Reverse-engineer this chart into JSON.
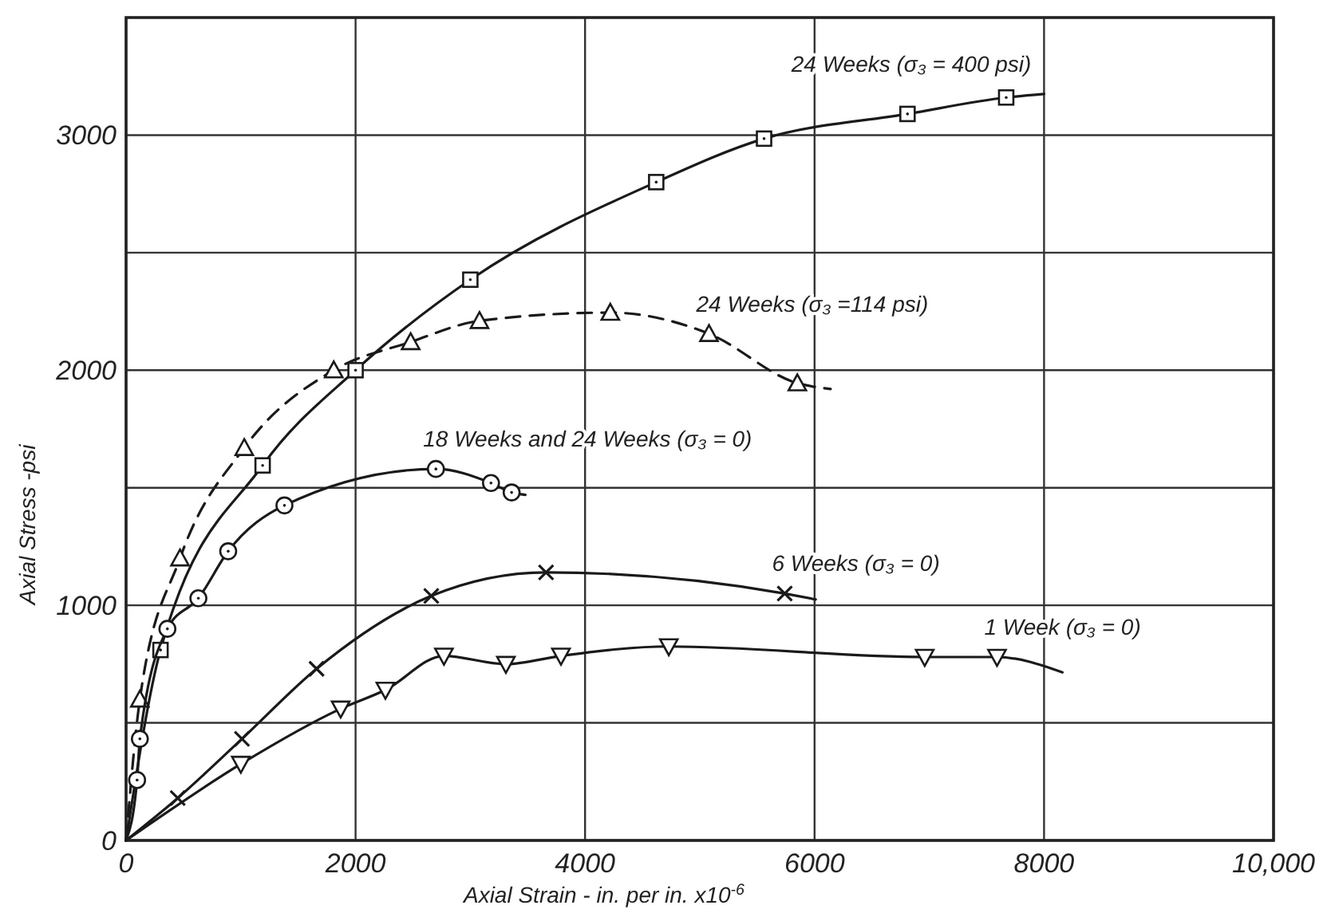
{
  "chart_data": {
    "type": "line",
    "xlabel": "Axial Strain - in. per in. x10$^{-6}$",
    "ylabel": "Axial Stress -psi",
    "xlim": [
      0,
      10000
    ],
    "ylim": [
      0,
      3500
    ],
    "xticks": [
      0,
      2000,
      4000,
      6000,
      8000,
      {
        "value": 10000,
        "label": "10,000"
      }
    ],
    "yticks": [
      0,
      {
        "value": 500,
        "label": null
      },
      1000,
      {
        "value": 1500,
        "label": null
      },
      2000,
      {
        "value": 2500,
        "label": null
      },
      3000
    ],
    "grid": true,
    "series": [
      {
        "type": "line",
        "color": "#1a1a1a",
        "line_style": "solid",
        "marker": "none",
        "x": [
          0,
          300,
          1190,
          2000,
          3000,
          4620,
          5560,
          6810,
          7670,
          8000
        ],
        "values": [
          0,
          810,
          1595,
          2000,
          2385,
          2800,
          2985,
          3090,
          3160,
          3175
        ]
      },
      {
        "type": "scatter",
        "color": "#1a1a1a",
        "marker": "square",
        "x": [
          300,
          1190,
          2000,
          3000,
          4620,
          5560,
          6810,
          7670
        ],
        "values": [
          810,
          1595,
          2000,
          2385,
          2800,
          2985,
          3090,
          3160
        ]
      },
      {
        "type": "line",
        "color": "#1a1a1a",
        "line_style": "dashed",
        "marker": "none",
        "x": [
          0,
          120,
          470,
          1030,
          1810,
          2480,
          3080,
          4220,
          5080,
          5850,
          6140
        ],
        "values": [
          0,
          600,
          1200,
          1670,
          2000,
          2120,
          2210,
          2245,
          2155,
          1945,
          1920
        ]
      },
      {
        "type": "scatter",
        "color": "#1a1a1a",
        "marker": "triangle",
        "x": [
          120,
          470,
          1030,
          1810,
          2480,
          3080,
          4220,
          5080,
          5850
        ],
        "values": [
          600,
          1200,
          1670,
          2000,
          2120,
          2210,
          2245,
          2155,
          1945
        ]
      },
      {
        "type": "line",
        "color": "#1a1a1a",
        "line_style": "solid",
        "marker": "none",
        "x": [
          0,
          96,
          120,
          360,
          630,
          890,
          1380,
          2700,
          3180,
          3360,
          3480
        ],
        "values": [
          0,
          257,
          432,
          900,
          1030,
          1230,
          1425,
          1580,
          1520,
          1480,
          1470
        ]
      },
      {
        "type": "scatter",
        "color": "#1a1a1a",
        "marker": "circle",
        "x": [
          96,
          120,
          360,
          630,
          890,
          1380,
          2700,
          3180,
          3360
        ],
        "values": [
          257,
          432,
          900,
          1030,
          1230,
          1425,
          1580,
          1520,
          1480
        ]
      },
      {
        "type": "line",
        "color": "#1a1a1a",
        "line_style": "solid",
        "marker": "none",
        "x": [
          0,
          450,
          1010,
          1660,
          2660,
          3660,
          5740,
          6010
        ],
        "values": [
          0,
          180,
          432,
          730,
          1040,
          1140,
          1050,
          1025
        ]
      },
      {
        "type": "scatter",
        "color": "#1a1a1a",
        "marker": "cross",
        "x": [
          450,
          1010,
          1660,
          2660,
          3660,
          5740
        ],
        "values": [
          180,
          432,
          730,
          1040,
          1140,
          1050
        ]
      },
      {
        "type": "line",
        "color": "#1a1a1a",
        "line_style": "solid",
        "marker": "none",
        "x": [
          0,
          1000,
          1870,
          2260,
          2770,
          3310,
          3790,
          4730,
          6960,
          7590,
          8160
        ],
        "values": [
          0,
          325,
          560,
          640,
          785,
          750,
          785,
          825,
          780,
          780,
          715
        ]
      },
      {
        "type": "scatter",
        "color": "#1a1a1a",
        "marker": "triangle-down",
        "x": [
          1000,
          1870,
          2260,
          2770,
          3310,
          3790,
          4730,
          6960,
          7590
        ],
        "values": [
          325,
          560,
          640,
          785,
          750,
          785,
          825,
          780,
          780
        ]
      }
    ],
    "annotations": [
      {
        "text": "24 Weeks (σ₃ = 400 psi)",
        "x": 8000,
        "y": 3175
      },
      {
        "text": "24 Weeks (σ₃ =114 psi)",
        "x": 5080,
        "y": 2155
      },
      {
        "text": "18 Weeks and 24 Weeks (σ₃ = 0)",
        "x": 2700,
        "y": 1580
      },
      {
        "text": "6 Weeks (σ₃ = 0)",
        "x": 5740,
        "y": 1050
      },
      {
        "text": "1 Week (σ₃ = 0)",
        "x": 7590,
        "y": 780
      }
    ]
  }
}
